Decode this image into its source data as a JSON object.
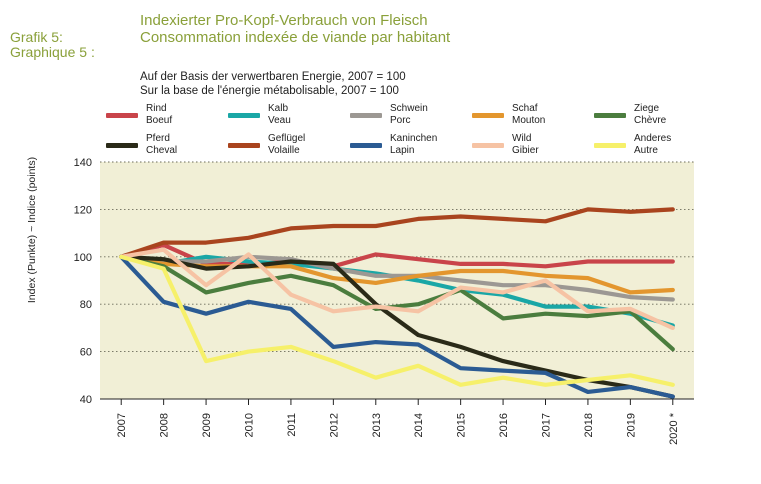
{
  "header": {
    "grafik_label_de": "Grafik 5:",
    "grafik_label_fr": "Graphique 5 :",
    "title_de": "Indexierter Pro-Kopf-Verbrauch von Fleisch",
    "title_fr": "Consommation indexée de viande par habitant",
    "subtitle_de": "Auf der Basis der verwertbaren Energie, 2007 = 100",
    "subtitle_fr": "Sur la base de l'énergie métabolisable, 2007 = 100"
  },
  "chart_data": {
    "type": "line",
    "title": "Indexierter Pro-Kopf-Verbrauch von Fleisch",
    "ylabel": "Index (Punkte)   ~   Indice (points)",
    "xlabel": "",
    "ylim": [
      40,
      140
    ],
    "yticks": [
      "40",
      "60",
      "80",
      "100",
      "120",
      "140"
    ],
    "x": [
      "2007",
      "2008",
      "2009",
      "2010",
      "2011",
      "2012",
      "2013",
      "2014",
      "2015",
      "2016",
      "2017",
      "2018",
      "2019",
      "2020 *"
    ],
    "grid": "horizontal dotted",
    "legend_position": "top",
    "background": "#f1efd6",
    "series": [
      {
        "name": "Rind",
        "name_fr": "Boeuf",
        "color": "#c9444a",
        "values": [
          100,
          105,
          97,
          97,
          98,
          96,
          101,
          99,
          97,
          97,
          96,
          98,
          98,
          98
        ]
      },
      {
        "name": "Kalb",
        "name_fr": "Veau",
        "color": "#1aa7a6",
        "values": [
          100,
          97,
          100,
          98,
          97,
          95,
          93,
          90,
          86,
          84,
          79,
          79,
          76,
          71
        ]
      },
      {
        "name": "Schwein",
        "name_fr": "Porc",
        "color": "#9c9893",
        "values": [
          100,
          98,
          98,
          100,
          99,
          95,
          92,
          92,
          90,
          88,
          88,
          86,
          83,
          82
        ]
      },
      {
        "name": "Schaf",
        "name_fr": "Mouton",
        "color": "#e3962e",
        "values": [
          100,
          97,
          96,
          96,
          96,
          91,
          89,
          92,
          94,
          94,
          92,
          91,
          85,
          86
        ]
      },
      {
        "name": "Ziege",
        "name_fr": "Chèvre",
        "color": "#4b7d3e",
        "values": [
          100,
          96,
          85,
          89,
          92,
          88,
          78,
          80,
          86,
          74,
          76,
          75,
          77,
          61
        ]
      },
      {
        "name": "Pferd",
        "name_fr": "Cheval",
        "color": "#2a2a18",
        "values": [
          100,
          99,
          95,
          96,
          98,
          97,
          80,
          67,
          62,
          56,
          52,
          48,
          45,
          41
        ]
      },
      {
        "name": "Geflügel",
        "name_fr": "Volaille",
        "color": "#a9441e",
        "values": [
          100,
          106,
          106,
          108,
          112,
          113,
          113,
          116,
          117,
          116,
          115,
          120,
          119,
          120
        ]
      },
      {
        "name": "Kaninchen",
        "name_fr": "Lapin",
        "color": "#2b5b93",
        "values": [
          100,
          81,
          76,
          81,
          78,
          62,
          64,
          63,
          53,
          52,
          51,
          43,
          45,
          41
        ]
      },
      {
        "name": "Wild",
        "name_fr": "Gibier",
        "color": "#f6c3a4",
        "values": [
          100,
          103,
          88,
          101,
          84,
          77,
          79,
          77,
          87,
          85,
          90,
          77,
          78,
          70
        ]
      },
      {
        "name": "Anderes",
        "name_fr": "Autre",
        "color": "#f6f06a",
        "values": [
          100,
          95,
          56,
          60,
          62,
          56,
          49,
          54,
          46,
          49,
          46,
          48,
          50,
          46
        ]
      }
    ]
  }
}
